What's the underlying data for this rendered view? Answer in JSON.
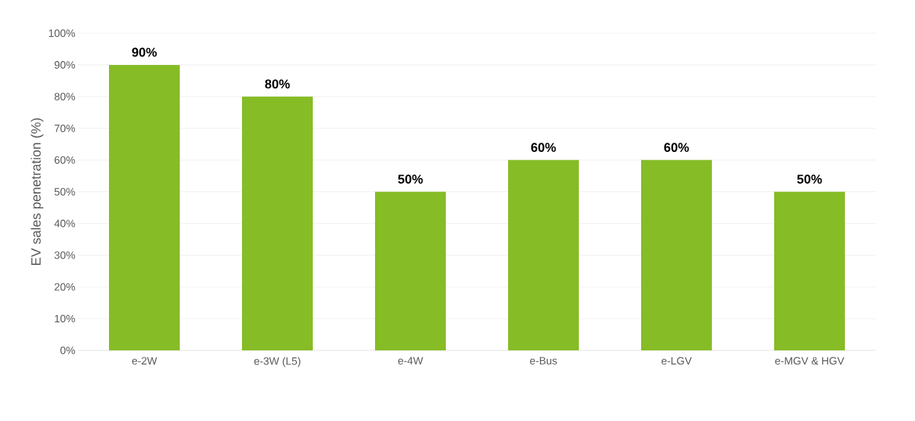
{
  "chart_data": {
    "type": "bar",
    "ylabel": "EV sales penetration (%)",
    "categories": [
      "e-2W",
      "e-3W (L5)",
      "e-4W",
      "e-Bus",
      "e-LGV",
      "e-MGV & HGV"
    ],
    "values": [
      90,
      80,
      50,
      60,
      60,
      50
    ],
    "value_labels": [
      "90%",
      "80%",
      "50%",
      "60%",
      "60%",
      "50%"
    ],
    "color": "#86bc25",
    "ylim": [
      0,
      100
    ],
    "yticks": [
      {
        "value": 0,
        "label": "0%"
      },
      {
        "value": 10,
        "label": "10%"
      },
      {
        "value": 20,
        "label": "20%"
      },
      {
        "value": 30,
        "label": "30%"
      },
      {
        "value": 40,
        "label": "40%"
      },
      {
        "value": 50,
        "label": "50%"
      },
      {
        "value": 60,
        "label": "60%"
      },
      {
        "value": 70,
        "label": "70%"
      },
      {
        "value": 80,
        "label": "80%"
      },
      {
        "value": 90,
        "label": "90%"
      },
      {
        "value": 100,
        "label": "100%"
      }
    ],
    "grid": "y"
  }
}
